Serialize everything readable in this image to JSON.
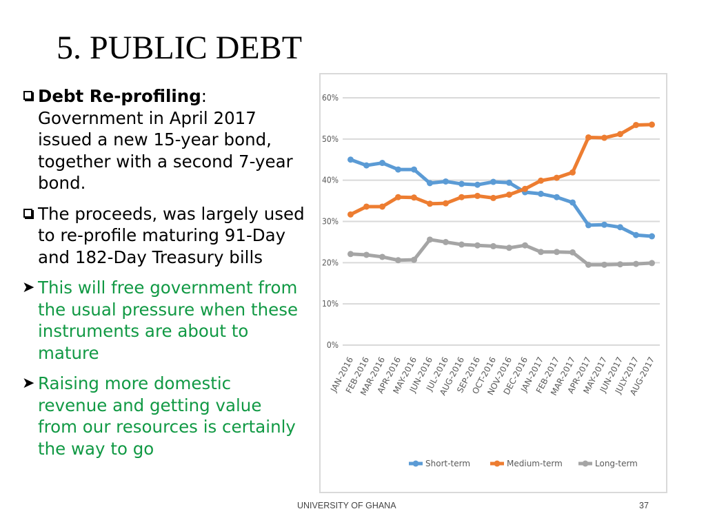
{
  "slide": {
    "title": "5. PUBLIC DEBT",
    "footer": "UNIVERSITY OF GHANA",
    "page_number": "37"
  },
  "bullets": [
    {
      "marker": "checkbox",
      "bold": "Debt Re-profiling",
      "text_after_bold": ":",
      "text": "Government in April 2017 issued a new 15-year bond, together with a second 7-year bond.",
      "color": "#000000"
    },
    {
      "marker": "checkbox",
      "text": "The proceeds, was largely used to re-profile maturing 91-Day and 182-Day Treasury bills",
      "color": "#000000"
    },
    {
      "marker": "arrow",
      "text": "This will free government from the usual pressure when these instruments are about to mature",
      "color": "#119944"
    },
    {
      "marker": "arrow",
      "text": "Raising more domestic revenue and getting value from our resources is certainly the way to go",
      "color": "#119944"
    }
  ],
  "chart_data": {
    "type": "line",
    "categories": [
      "JAN-2016",
      "FEB-2016",
      "MAR-2016",
      "APR-2016",
      "MAY-2016",
      "JUN-2016",
      "JUL-2016",
      "AUG-2016",
      "SEP-2016",
      "OCT-2016",
      "NOV-2016",
      "DEC-2016",
      "JAN-2017",
      "FEB-2017",
      "MAR-2017",
      "APR-2017",
      "MAY-2017",
      "JUN-2017",
      "JULY-2017",
      "AUG-2017"
    ],
    "series": [
      {
        "name": "Short-term",
        "color": "#5b9bd5",
        "values": [
          45.0,
          43.6,
          44.2,
          42.6,
          42.6,
          39.3,
          39.7,
          39.1,
          38.9,
          39.6,
          39.4,
          37.1,
          36.7,
          35.9,
          34.6,
          29.1,
          29.2,
          28.6,
          26.7,
          26.4
        ]
      },
      {
        "name": "Medium-term",
        "color": "#ed7d31",
        "values": [
          31.7,
          33.6,
          33.6,
          35.9,
          35.8,
          34.3,
          34.4,
          35.9,
          36.2,
          35.7,
          36.5,
          37.9,
          39.9,
          40.6,
          41.9,
          50.4,
          50.3,
          51.2,
          53.4,
          53.5
        ]
      },
      {
        "name": "Long-term",
        "color": "#a5a5a5",
        "values": [
          22.1,
          21.9,
          21.4,
          20.6,
          20.7,
          25.6,
          25.0,
          24.4,
          24.2,
          24.0,
          23.6,
          24.2,
          22.6,
          22.6,
          22.5,
          19.5,
          19.5,
          19.6,
          19.7,
          19.9
        ]
      }
    ],
    "y_ticks": [
      "0%",
      "10%",
      "20%",
      "30%",
      "40%",
      "50%",
      "60%"
    ],
    "ylim": [
      0,
      60
    ],
    "grid": true,
    "legend_position": "bottom"
  }
}
